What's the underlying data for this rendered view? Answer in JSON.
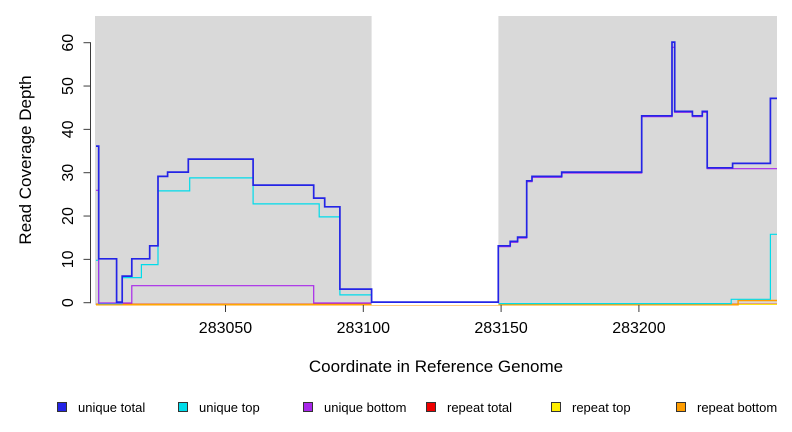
{
  "chart_data": {
    "type": "line",
    "subtype": "step-coverage",
    "title": "",
    "xlabel": "Coordinate in Reference Genome",
    "ylabel": "Read Coverage Depth",
    "xlim": [
      283003,
      283250
    ],
    "ylim": [
      0,
      60
    ],
    "xticks": [
      283050,
      283100,
      283150,
      283200
    ],
    "yticks": [
      0,
      10,
      20,
      30,
      40,
      50,
      60
    ],
    "grid": false,
    "plot_background": "#d9d9d9",
    "gap_band": {
      "start": 283103,
      "end": 283149,
      "color": "#ffffff"
    },
    "legend_position": "bottom",
    "series": [
      {
        "name": "unique total",
        "color": "#2424e6",
        "width": 1.7,
        "points": [
          [
            283003,
            36
          ],
          [
            283004,
            10
          ],
          [
            283010.5,
            0
          ],
          [
            283012.5,
            6
          ],
          [
            283016,
            10
          ],
          [
            283022.5,
            13
          ],
          [
            283025.5,
            29
          ],
          [
            283029,
            30
          ],
          [
            283036.5,
            33
          ],
          [
            283060,
            27
          ],
          [
            283082,
            24
          ],
          [
            283086,
            22
          ],
          [
            283091.5,
            3
          ],
          [
            283103,
            0
          ],
          [
            283149,
            13
          ],
          [
            283153.3,
            14
          ],
          [
            283156,
            15
          ],
          [
            283159.3,
            28
          ],
          [
            283161.2,
            29
          ],
          [
            283172,
            30
          ],
          [
            283201,
            43
          ],
          [
            283212,
            60
          ],
          [
            283213,
            44
          ],
          [
            283219.4,
            43
          ],
          [
            283223,
            44
          ],
          [
            283224.8,
            31
          ],
          [
            283234,
            32
          ],
          [
            283247.7,
            47
          ]
        ]
      },
      {
        "name": "unique top",
        "color": "#00dcea",
        "width": 1.2,
        "points": [
          [
            283003,
            10
          ],
          [
            283004,
            0
          ],
          [
            283012.5,
            6
          ],
          [
            283019.5,
            9
          ],
          [
            283025.5,
            26
          ],
          [
            283037,
            29
          ],
          [
            283060,
            23
          ],
          [
            283084,
            20
          ],
          [
            283091.5,
            2
          ],
          [
            283103,
            0
          ],
          [
            283233.5,
            1
          ],
          [
            283247.7,
            16
          ]
        ]
      },
      {
        "name": "unique bottom",
        "color": "#a827ea",
        "width": 1.2,
        "points": [
          [
            283003,
            26
          ],
          [
            283004,
            0
          ],
          [
            283016,
            4
          ],
          [
            283082,
            0
          ],
          [
            283149,
            13
          ],
          [
            283153.3,
            14
          ],
          [
            283156,
            15
          ],
          [
            283159.3,
            28
          ],
          [
            283161.2,
            29
          ],
          [
            283172,
            30
          ],
          [
            283201,
            43
          ],
          [
            283212,
            59
          ],
          [
            283213,
            44
          ],
          [
            283219.4,
            43
          ],
          [
            283223,
            44
          ],
          [
            283224.8,
            31
          ]
        ]
      },
      {
        "name": "repeat total",
        "color": "#ee0000",
        "width": 1.0,
        "points": [
          [
            283003,
            0
          ]
        ]
      },
      {
        "name": "repeat top",
        "color": "#ffee00",
        "width": 1.0,
        "points": [
          [
            283003,
            0
          ]
        ]
      },
      {
        "name": "repeat bottom",
        "color": "#ff9d00",
        "width": 1.4,
        "points": [
          [
            283003,
            0
          ],
          [
            283236,
            1
          ]
        ]
      }
    ]
  }
}
